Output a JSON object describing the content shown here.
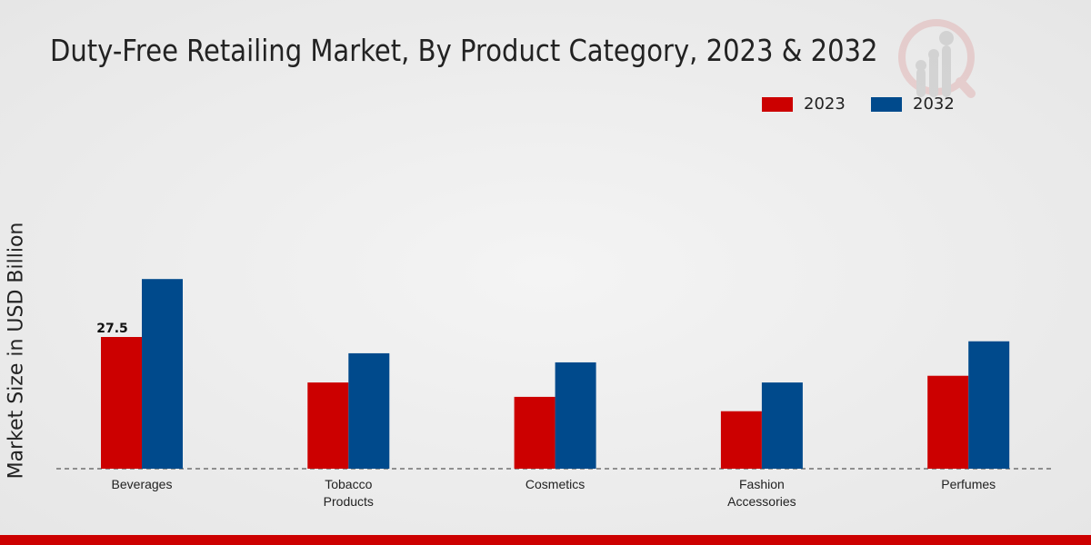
{
  "chart_data": {
    "type": "bar",
    "title": "Duty-Free Retailing Market, By Product Category, 2023 & 2032",
    "ylabel": "Market Size in USD Billion",
    "xlabel": "",
    "categories": [
      "Beverages",
      "Tobacco Products",
      "Cosmetics",
      "Fashion Accessories",
      "Perfumes"
    ],
    "category_lines": [
      [
        "Beverages"
      ],
      [
        "Tobacco",
        "Products"
      ],
      [
        "Cosmetics"
      ],
      [
        "Fashion",
        "Accessories"
      ],
      [
        "Perfumes"
      ]
    ],
    "series": [
      {
        "name": "2023",
        "color": "#cc0000",
        "values": [
          27.5,
          18.0,
          15.0,
          12.0,
          19.4
        ]
      },
      {
        "name": "2032",
        "color": "#004a8c",
        "values": [
          39.6,
          24.1,
          22.2,
          18.0,
          26.6
        ]
      }
    ],
    "data_labels": [
      {
        "series": 0,
        "index": 0,
        "text": "27.5"
      }
    ],
    "ylim": [
      0,
      60
    ],
    "grid": false,
    "legend": "top-right"
  }
}
